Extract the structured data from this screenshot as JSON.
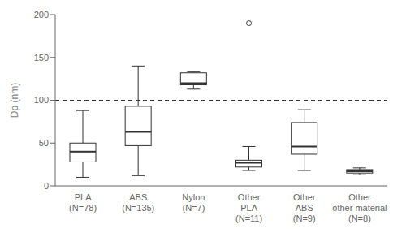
{
  "chart_data": {
    "type": "box",
    "categories": [
      "PLA\n(N=78)",
      "ABS\n(N=135)",
      "Nylon\n(N=7)",
      "Other\nPLA\n(N=11)",
      "Other\nABS\n(N=9)",
      "Other\nother material\n(N=8)"
    ],
    "boxes": [
      {
        "med": 40,
        "q1": 28,
        "q3": 50,
        "whislo": 10,
        "whishi": 88,
        "fliers": []
      },
      {
        "med": 63,
        "q1": 47,
        "q3": 93,
        "whislo": 12,
        "whishi": 140,
        "fliers": []
      },
      {
        "med": 120,
        "q1": 118,
        "q3": 132,
        "whislo": 113,
        "whishi": 133,
        "fliers": []
      },
      {
        "med": 27,
        "q1": 22,
        "q3": 30,
        "whislo": 18,
        "whishi": 46,
        "fliers": [
          190
        ]
      },
      {
        "med": 46,
        "q1": 37,
        "q3": 74,
        "whislo": 18,
        "whishi": 89,
        "fliers": []
      },
      {
        "med": 17,
        "q1": 15,
        "q3": 19,
        "whislo": 13,
        "whishi": 21,
        "fliers": []
      }
    ],
    "ylabel": "Dp (nm)",
    "ylim": [
      0,
      200
    ],
    "yticks": [
      0,
      50,
      100,
      150,
      200
    ],
    "hline": 100,
    "color": "#333333",
    "grid": false
  }
}
